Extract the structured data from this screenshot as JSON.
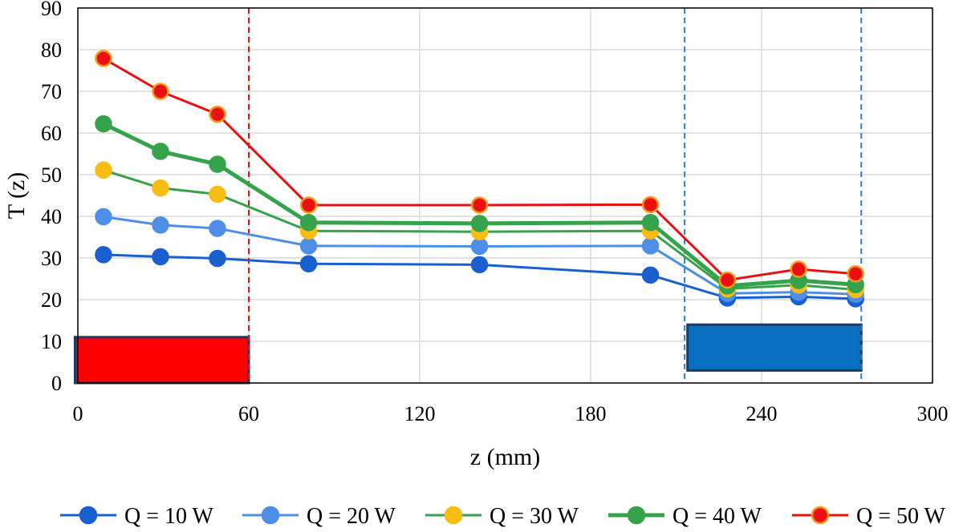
{
  "chart_data": {
    "type": "line",
    "title": "",
    "xlabel": "z (mm)",
    "ylabel": "T (z)",
    "xlim": [
      0,
      300
    ],
    "ylim": [
      0,
      90
    ],
    "xticks": [
      0,
      60,
      120,
      180,
      240,
      300
    ],
    "yticks": [
      0,
      10,
      20,
      30,
      40,
      50,
      60,
      70,
      80,
      90
    ],
    "grid": true,
    "legend_position": "bottom",
    "x": [
      9,
      29,
      49,
      81,
      141,
      201,
      228,
      253,
      273
    ],
    "series": [
      {
        "name": "Q = 10 W",
        "color": "#1a5fd0",
        "marker_edge": "#1a5fd0",
        "values": [
          30.8,
          30.3,
          29.9,
          28.6,
          28.4,
          25.9,
          20.4,
          20.7,
          20.2
        ]
      },
      {
        "name": "Q = 20 W",
        "color": "#4f8ee6",
        "marker_edge": "#4f8ee6",
        "values": [
          39.9,
          37.9,
          37.1,
          32.9,
          32.8,
          32.9,
          21.5,
          21.8,
          21.3
        ]
      },
      {
        "name": "Q = 30 W",
        "color": "#36a24c",
        "marker_edge": "#f7bd14",
        "marker_color": "#f7bd14",
        "values": [
          51.1,
          46.8,
          45.3,
          36.5,
          36.3,
          36.5,
          22.6,
          23.5,
          22.4
        ]
      },
      {
        "name": "Q = 40 W",
        "color": "#36a24c",
        "marker_edge": "#36a24c",
        "values": [
          62.2,
          55.6,
          52.5,
          38.5,
          38.3,
          38.5,
          23.3,
          24.6,
          23.6
        ]
      },
      {
        "name": "Q = 50 W",
        "color": "#e81010",
        "marker_edge": "#f59a1c",
        "values": [
          77.9,
          70.0,
          64.5,
          42.7,
          42.7,
          42.8,
          24.7,
          27.3,
          26.2
        ]
      }
    ],
    "annotations": {
      "vertical_lines": [
        {
          "x": 60,
          "color": "#e81010",
          "style": "dashed"
        },
        {
          "x": 213,
          "color": "#2a7fc2",
          "style": "dashed"
        },
        {
          "x": 275,
          "color": "#2a7fc2",
          "style": "dashed"
        }
      ],
      "blocks": [
        {
          "x0": -1,
          "x1": 60,
          "y0": 0,
          "y1": 11,
          "fill": "#ff0000",
          "stroke": "#1f3864"
        },
        {
          "x0": 214,
          "x1": 275,
          "y0": 3,
          "y1": 14,
          "fill": "#0a6fbf",
          "stroke": "#1f3864"
        }
      ]
    }
  }
}
